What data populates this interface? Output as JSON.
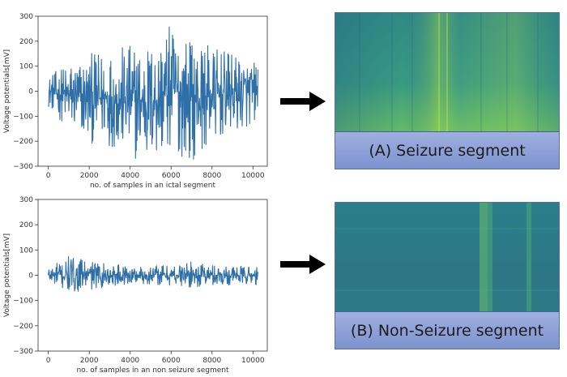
{
  "chart_data": [
    {
      "type": "line",
      "xlabel": "no. of samples in an ictal segment",
      "ylabel": "Voltage potentials[mV]",
      "xlim": [
        -500,
        10700
      ],
      "ylim": [
        -300,
        300
      ],
      "x_ticks": [
        0,
        2000,
        4000,
        6000,
        8000,
        10000
      ],
      "y_ticks": [
        -300,
        -200,
        -100,
        0,
        100,
        200,
        300
      ],
      "grid": false,
      "series": [
        {
          "color": "#2f6fa8",
          "n_samples": 10240,
          "envelope": {
            "x": [
              0,
              1000,
              2000,
              3000,
              4000,
              5000,
              6000,
              7000,
              8000,
              9000,
              10240
            ],
            "upper": [
              60,
              120,
              150,
              170,
              190,
              200,
              270,
              210,
              180,
              150,
              120
            ],
            "lower": [
              -60,
              -160,
              -210,
              -220,
              -270,
              -290,
              -250,
              -280,
              -210,
              -170,
              -130
            ]
          }
        }
      ]
    },
    {
      "type": "line",
      "xlabel": "no. of samples in an non seizure segment",
      "ylabel": "Voltage potentials[mV]",
      "xlim": [
        -500,
        10700
      ],
      "ylim": [
        -300,
        300
      ],
      "x_ticks": [
        0,
        2000,
        4000,
        6000,
        8000,
        10000
      ],
      "y_ticks": [
        -300,
        -200,
        -100,
        0,
        100,
        200,
        300
      ],
      "grid": false,
      "series": [
        {
          "color": "#2f6fa8",
          "n_samples": 10240,
          "envelope": {
            "x": [
              0,
              1000,
              2000,
              3000,
              4000,
              5000,
              6000,
              7000,
              8000,
              9000,
              10240
            ],
            "upper": [
              40,
              75,
              60,
              45,
              40,
              40,
              45,
              55,
              45,
              40,
              35
            ],
            "lower": [
              -40,
              -75,
              -60,
              -45,
              -40,
              -40,
              -45,
              -50,
              -45,
              -40,
              -40
            ]
          }
        }
      ]
    }
  ],
  "spectrograms": [
    {
      "caption": "(A)  Seizure segment"
    },
    {
      "caption": "(B) Non-Seizure segment"
    }
  ],
  "colors": {
    "signal": "#2f6fa8",
    "arrow": "#000000",
    "caption_bg": "#8ea2d8",
    "spec_dark": "#2e6a88",
    "spec_mid": "#2f9a80",
    "spec_bright": "#a8d83c"
  }
}
